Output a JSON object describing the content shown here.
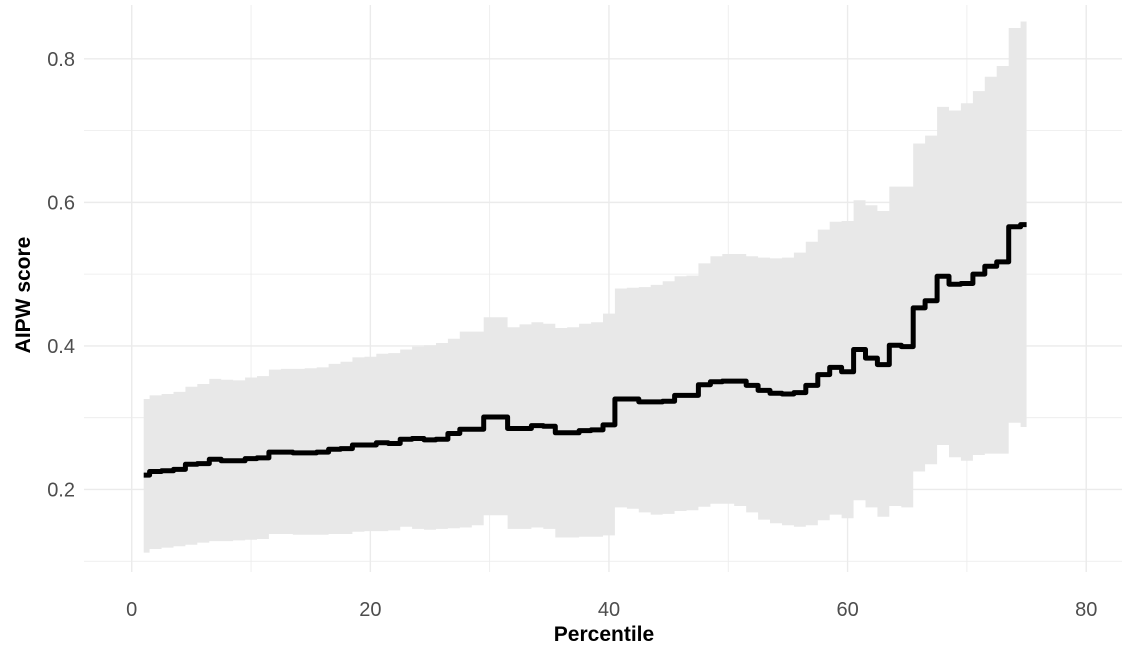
{
  "chart_data": {
    "type": "line",
    "title": "",
    "xlabel": "Percentile",
    "ylabel": "AIPW score",
    "xlim": [
      -4,
      83
    ],
    "ylim": [
      0.085,
      0.875
    ],
    "x_ticks": [
      0,
      20,
      40,
      60,
      80
    ],
    "y_ticks": [
      0.2,
      0.4,
      0.6,
      0.8
    ],
    "x_tick_labels": [
      "0",
      "20",
      "40",
      "60",
      "80"
    ],
    "y_tick_labels": [
      "0.2",
      "0.4",
      "0.6",
      "0.8"
    ],
    "grid": true,
    "legend": "none",
    "colors": {
      "line": "#000000",
      "band": "#e8e8e8",
      "grid": "#ebebeb"
    },
    "series": [
      {
        "x": [
          1,
          2,
          3,
          4,
          5,
          6,
          7,
          8,
          9,
          10,
          11,
          12,
          13,
          14,
          15,
          16,
          17,
          18,
          19,
          20,
          21,
          22,
          23,
          24,
          25,
          26,
          27,
          28,
          29,
          30,
          31,
          32,
          33,
          34,
          35,
          36,
          37,
          38,
          39,
          40,
          41,
          42,
          43,
          44,
          45,
          46,
          47,
          48,
          49,
          50,
          51,
          52,
          53,
          54,
          55,
          56,
          57,
          58,
          59,
          60,
          61,
          62,
          63,
          64,
          65,
          66,
          67,
          68,
          69,
          70,
          71,
          72,
          73,
          74,
          75
        ],
        "values": [
          0.22,
          0.225,
          0.226,
          0.228,
          0.235,
          0.236,
          0.242,
          0.24,
          0.24,
          0.243,
          0.244,
          0.252,
          0.252,
          0.251,
          0.251,
          0.252,
          0.256,
          0.257,
          0.262,
          0.262,
          0.265,
          0.264,
          0.27,
          0.271,
          0.269,
          0.27,
          0.278,
          0.284,
          0.284,
          0.301,
          0.301,
          0.285,
          0.285,
          0.289,
          0.288,
          0.279,
          0.279,
          0.282,
          0.283,
          0.29,
          0.326,
          0.326,
          0.322,
          0.322,
          0.323,
          0.331,
          0.331,
          0.346,
          0.35,
          0.351,
          0.351,
          0.345,
          0.338,
          0.334,
          0.333,
          0.335,
          0.345,
          0.36,
          0.37,
          0.364,
          0.395,
          0.383,
          0.374,
          0.401,
          0.399,
          0.453,
          0.463,
          0.497,
          0.486,
          0.487,
          0.5,
          0.511,
          0.517,
          0.566,
          0.569
        ],
        "lower": [
          0.112,
          0.117,
          0.119,
          0.121,
          0.123,
          0.126,
          0.128,
          0.128,
          0.129,
          0.13,
          0.131,
          0.138,
          0.138,
          0.137,
          0.137,
          0.137,
          0.138,
          0.138,
          0.141,
          0.142,
          0.142,
          0.143,
          0.148,
          0.145,
          0.144,
          0.145,
          0.146,
          0.147,
          0.15,
          0.164,
          0.164,
          0.145,
          0.145,
          0.147,
          0.145,
          0.133,
          0.133,
          0.134,
          0.134,
          0.136,
          0.175,
          0.173,
          0.168,
          0.165,
          0.166,
          0.17,
          0.171,
          0.176,
          0.18,
          0.18,
          0.177,
          0.168,
          0.158,
          0.153,
          0.15,
          0.148,
          0.15,
          0.157,
          0.165,
          0.16,
          0.185,
          0.175,
          0.162,
          0.177,
          0.175,
          0.225,
          0.235,
          0.262,
          0.245,
          0.24,
          0.248,
          0.25,
          0.25,
          0.293,
          0.287
        ],
        "upper": [
          0.326,
          0.331,
          0.333,
          0.336,
          0.343,
          0.347,
          0.354,
          0.353,
          0.352,
          0.356,
          0.358,
          0.367,
          0.368,
          0.368,
          0.369,
          0.37,
          0.375,
          0.378,
          0.384,
          0.385,
          0.389,
          0.39,
          0.395,
          0.399,
          0.401,
          0.404,
          0.41,
          0.42,
          0.42,
          0.44,
          0.44,
          0.426,
          0.43,
          0.433,
          0.431,
          0.425,
          0.426,
          0.431,
          0.433,
          0.445,
          0.48,
          0.481,
          0.482,
          0.485,
          0.49,
          0.497,
          0.498,
          0.515,
          0.525,
          0.528,
          0.528,
          0.525,
          0.523,
          0.522,
          0.523,
          0.53,
          0.545,
          0.562,
          0.573,
          0.574,
          0.603,
          0.596,
          0.588,
          0.622,
          0.622,
          0.682,
          0.693,
          0.733,
          0.728,
          0.738,
          0.755,
          0.775,
          0.79,
          0.843,
          0.852
        ]
      }
    ]
  }
}
